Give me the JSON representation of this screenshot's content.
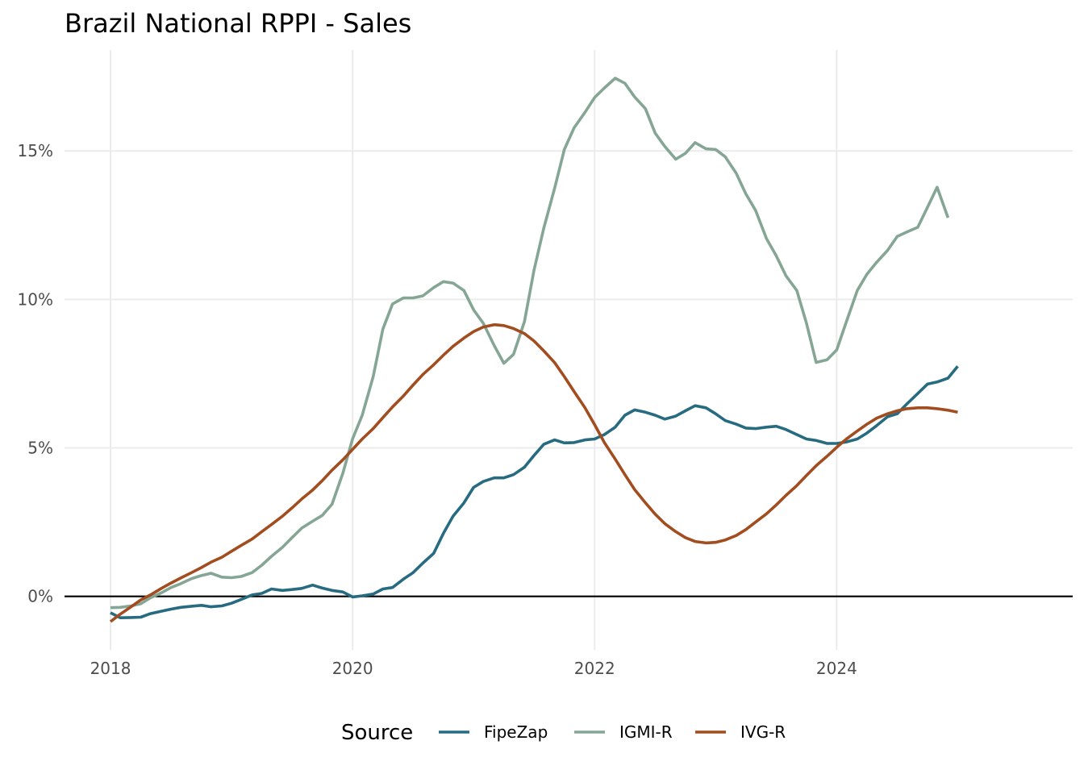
{
  "chart_data": {
    "type": "line",
    "title": "Brazil National RPPI - Sales",
    "xlabel": "",
    "ylabel": "",
    "x_ticks": [
      2018,
      2020,
      2022,
      2024
    ],
    "x_tick_labels": [
      "2018",
      "2020",
      "2022",
      "2024"
    ],
    "y_ticks": [
      0,
      5,
      10,
      15
    ],
    "y_tick_labels": [
      "0%",
      "5%",
      "10%",
      "15%"
    ],
    "xlim": [
      2017.62,
      2025.95
    ],
    "ylim": [
      -1.8,
      18.4
    ],
    "grid": true,
    "zero_line": true,
    "legend": {
      "title": "Source",
      "position": "bottom"
    },
    "series": [
      {
        "name": "FipeZap",
        "color": "#276b80",
        "points": [
          [
            2018.0,
            -0.55
          ],
          [
            2018.08,
            -0.72
          ],
          [
            2018.17,
            -0.71
          ],
          [
            2018.25,
            -0.7
          ],
          [
            2018.33,
            -0.58
          ],
          [
            2018.42,
            -0.5
          ],
          [
            2018.5,
            -0.43
          ],
          [
            2018.58,
            -0.37
          ],
          [
            2018.67,
            -0.33
          ],
          [
            2018.75,
            -0.3
          ],
          [
            2018.83,
            -0.35
          ],
          [
            2018.92,
            -0.32
          ],
          [
            2019.0,
            -0.23
          ],
          [
            2019.08,
            -0.1
          ],
          [
            2019.17,
            0.05
          ],
          [
            2019.25,
            0.1
          ],
          [
            2019.33,
            0.25
          ],
          [
            2019.42,
            0.2
          ],
          [
            2019.5,
            0.23
          ],
          [
            2019.58,
            0.27
          ],
          [
            2019.67,
            0.38
          ],
          [
            2019.75,
            0.28
          ],
          [
            2019.83,
            0.2
          ],
          [
            2019.92,
            0.15
          ],
          [
            2020.0,
            -0.02
          ],
          [
            2020.08,
            0.02
          ],
          [
            2020.17,
            0.08
          ],
          [
            2020.25,
            0.25
          ],
          [
            2020.33,
            0.3
          ],
          [
            2020.42,
            0.58
          ],
          [
            2020.5,
            0.8
          ],
          [
            2020.58,
            1.12
          ],
          [
            2020.67,
            1.45
          ],
          [
            2020.75,
            2.12
          ],
          [
            2020.83,
            2.7
          ],
          [
            2020.92,
            3.15
          ],
          [
            2021.0,
            3.67
          ],
          [
            2021.08,
            3.87
          ],
          [
            2021.17,
            3.99
          ],
          [
            2021.25,
            3.99
          ],
          [
            2021.33,
            4.1
          ],
          [
            2021.42,
            4.35
          ],
          [
            2021.5,
            4.75
          ],
          [
            2021.58,
            5.12
          ],
          [
            2021.67,
            5.27
          ],
          [
            2021.75,
            5.17
          ],
          [
            2021.83,
            5.18
          ],
          [
            2021.92,
            5.27
          ],
          [
            2022.0,
            5.3
          ],
          [
            2022.08,
            5.45
          ],
          [
            2022.17,
            5.7
          ],
          [
            2022.25,
            6.1
          ],
          [
            2022.33,
            6.28
          ],
          [
            2022.42,
            6.2
          ],
          [
            2022.5,
            6.1
          ],
          [
            2022.58,
            5.97
          ],
          [
            2022.67,
            6.07
          ],
          [
            2022.75,
            6.25
          ],
          [
            2022.83,
            6.42
          ],
          [
            2022.92,
            6.35
          ],
          [
            2023.0,
            6.15
          ],
          [
            2023.08,
            5.92
          ],
          [
            2023.17,
            5.8
          ],
          [
            2023.25,
            5.67
          ],
          [
            2023.33,
            5.65
          ],
          [
            2023.42,
            5.7
          ],
          [
            2023.5,
            5.73
          ],
          [
            2023.58,
            5.62
          ],
          [
            2023.67,
            5.45
          ],
          [
            2023.75,
            5.3
          ],
          [
            2023.83,
            5.25
          ],
          [
            2023.92,
            5.15
          ],
          [
            2024.0,
            5.15
          ],
          [
            2024.08,
            5.2
          ],
          [
            2024.17,
            5.3
          ],
          [
            2024.25,
            5.5
          ],
          [
            2024.33,
            5.75
          ],
          [
            2024.42,
            6.05
          ],
          [
            2024.5,
            6.15
          ],
          [
            2024.58,
            6.48
          ],
          [
            2024.67,
            6.83
          ],
          [
            2024.75,
            7.15
          ],
          [
            2024.83,
            7.22
          ],
          [
            2024.92,
            7.35
          ],
          [
            2025.0,
            7.75
          ]
        ]
      },
      {
        "name": "IGMI-R",
        "color": "#86a695",
        "points": [
          [
            2018.0,
            -0.38
          ],
          [
            2018.08,
            -0.37
          ],
          [
            2018.17,
            -0.32
          ],
          [
            2018.25,
            -0.25
          ],
          [
            2018.33,
            -0.05
          ],
          [
            2018.42,
            0.12
          ],
          [
            2018.5,
            0.3
          ],
          [
            2018.58,
            0.43
          ],
          [
            2018.67,
            0.6
          ],
          [
            2018.75,
            0.7
          ],
          [
            2018.83,
            0.78
          ],
          [
            2018.92,
            0.65
          ],
          [
            2019.0,
            0.63
          ],
          [
            2019.08,
            0.67
          ],
          [
            2019.17,
            0.8
          ],
          [
            2019.25,
            1.05
          ],
          [
            2019.33,
            1.35
          ],
          [
            2019.42,
            1.65
          ],
          [
            2019.5,
            1.98
          ],
          [
            2019.58,
            2.3
          ],
          [
            2019.67,
            2.53
          ],
          [
            2019.75,
            2.73
          ],
          [
            2019.83,
            3.1
          ],
          [
            2019.92,
            4.15
          ],
          [
            2020.0,
            5.3
          ],
          [
            2020.08,
            6.1
          ],
          [
            2020.17,
            7.4
          ],
          [
            2020.25,
            9.0
          ],
          [
            2020.33,
            9.85
          ],
          [
            2020.42,
            10.05
          ],
          [
            2020.5,
            10.05
          ],
          [
            2020.58,
            10.12
          ],
          [
            2020.67,
            10.4
          ],
          [
            2020.75,
            10.6
          ],
          [
            2020.83,
            10.55
          ],
          [
            2020.92,
            10.3
          ],
          [
            2021.0,
            9.65
          ],
          [
            2021.08,
            9.2
          ],
          [
            2021.17,
            8.45
          ],
          [
            2021.25,
            7.85
          ],
          [
            2021.33,
            8.15
          ],
          [
            2021.42,
            9.25
          ],
          [
            2021.5,
            11.0
          ],
          [
            2021.58,
            12.4
          ],
          [
            2021.67,
            13.75
          ],
          [
            2021.75,
            15.05
          ],
          [
            2021.83,
            15.78
          ],
          [
            2021.92,
            16.3
          ],
          [
            2022.0,
            16.8
          ],
          [
            2022.08,
            17.12
          ],
          [
            2022.17,
            17.45
          ],
          [
            2022.25,
            17.28
          ],
          [
            2022.33,
            16.82
          ],
          [
            2022.42,
            16.42
          ],
          [
            2022.5,
            15.6
          ],
          [
            2022.58,
            15.15
          ],
          [
            2022.67,
            14.72
          ],
          [
            2022.75,
            14.92
          ],
          [
            2022.83,
            15.28
          ],
          [
            2022.92,
            15.07
          ],
          [
            2023.0,
            15.05
          ],
          [
            2023.08,
            14.8
          ],
          [
            2023.17,
            14.25
          ],
          [
            2023.25,
            13.55
          ],
          [
            2023.33,
            13.0
          ],
          [
            2023.42,
            12.05
          ],
          [
            2023.5,
            11.47
          ],
          [
            2023.58,
            10.8
          ],
          [
            2023.67,
            10.3
          ],
          [
            2023.75,
            9.2
          ],
          [
            2023.83,
            7.88
          ],
          [
            2023.92,
            7.97
          ],
          [
            2024.0,
            8.3
          ],
          [
            2024.08,
            9.25
          ],
          [
            2024.17,
            10.3
          ],
          [
            2024.25,
            10.85
          ],
          [
            2024.33,
            11.25
          ],
          [
            2024.42,
            11.65
          ],
          [
            2024.5,
            12.12
          ],
          [
            2024.58,
            12.27
          ],
          [
            2024.67,
            12.43
          ],
          [
            2024.75,
            13.1
          ],
          [
            2024.83,
            13.78
          ],
          [
            2024.92,
            12.75
          ]
        ]
      },
      {
        "name": "IVG-R",
        "color": "#a24d1f",
        "points": [
          [
            2018.0,
            -0.85
          ],
          [
            2018.08,
            -0.6
          ],
          [
            2018.17,
            -0.35
          ],
          [
            2018.25,
            -0.12
          ],
          [
            2018.33,
            0.05
          ],
          [
            2018.42,
            0.27
          ],
          [
            2018.5,
            0.45
          ],
          [
            2018.58,
            0.62
          ],
          [
            2018.67,
            0.8
          ],
          [
            2018.75,
            0.97
          ],
          [
            2018.83,
            1.15
          ],
          [
            2018.92,
            1.32
          ],
          [
            2019.0,
            1.52
          ],
          [
            2019.08,
            1.72
          ],
          [
            2019.17,
            1.93
          ],
          [
            2019.25,
            2.18
          ],
          [
            2019.33,
            2.42
          ],
          [
            2019.42,
            2.7
          ],
          [
            2019.5,
            2.98
          ],
          [
            2019.58,
            3.28
          ],
          [
            2019.67,
            3.58
          ],
          [
            2019.75,
            3.9
          ],
          [
            2019.83,
            4.25
          ],
          [
            2019.92,
            4.6
          ],
          [
            2020.0,
            4.95
          ],
          [
            2020.08,
            5.3
          ],
          [
            2020.17,
            5.65
          ],
          [
            2020.25,
            6.02
          ],
          [
            2020.33,
            6.38
          ],
          [
            2020.42,
            6.75
          ],
          [
            2020.5,
            7.12
          ],
          [
            2020.58,
            7.47
          ],
          [
            2020.67,
            7.8
          ],
          [
            2020.75,
            8.12
          ],
          [
            2020.83,
            8.42
          ],
          [
            2020.92,
            8.7
          ],
          [
            2021.0,
            8.92
          ],
          [
            2021.08,
            9.07
          ],
          [
            2021.17,
            9.15
          ],
          [
            2021.25,
            9.12
          ],
          [
            2021.33,
            9.02
          ],
          [
            2021.42,
            8.85
          ],
          [
            2021.5,
            8.6
          ],
          [
            2021.58,
            8.27
          ],
          [
            2021.67,
            7.87
          ],
          [
            2021.75,
            7.4
          ],
          [
            2021.83,
            6.9
          ],
          [
            2021.92,
            6.35
          ],
          [
            2022.0,
            5.78
          ],
          [
            2022.08,
            5.18
          ],
          [
            2022.17,
            4.62
          ],
          [
            2022.25,
            4.1
          ],
          [
            2022.33,
            3.6
          ],
          [
            2022.42,
            3.15
          ],
          [
            2022.5,
            2.77
          ],
          [
            2022.58,
            2.45
          ],
          [
            2022.67,
            2.18
          ],
          [
            2022.75,
            1.98
          ],
          [
            2022.83,
            1.85
          ],
          [
            2022.92,
            1.8
          ],
          [
            2023.0,
            1.82
          ],
          [
            2023.08,
            1.9
          ],
          [
            2023.17,
            2.05
          ],
          [
            2023.25,
            2.25
          ],
          [
            2023.33,
            2.5
          ],
          [
            2023.42,
            2.78
          ],
          [
            2023.5,
            3.08
          ],
          [
            2023.58,
            3.4
          ],
          [
            2023.67,
            3.73
          ],
          [
            2023.75,
            4.07
          ],
          [
            2023.83,
            4.4
          ],
          [
            2023.92,
            4.72
          ],
          [
            2024.0,
            5.02
          ],
          [
            2024.08,
            5.3
          ],
          [
            2024.17,
            5.57
          ],
          [
            2024.25,
            5.8
          ],
          [
            2024.33,
            6.0
          ],
          [
            2024.42,
            6.15
          ],
          [
            2024.5,
            6.25
          ],
          [
            2024.58,
            6.32
          ],
          [
            2024.67,
            6.35
          ],
          [
            2024.75,
            6.35
          ],
          [
            2024.83,
            6.32
          ],
          [
            2024.92,
            6.27
          ],
          [
            2025.0,
            6.2
          ]
        ]
      }
    ]
  }
}
